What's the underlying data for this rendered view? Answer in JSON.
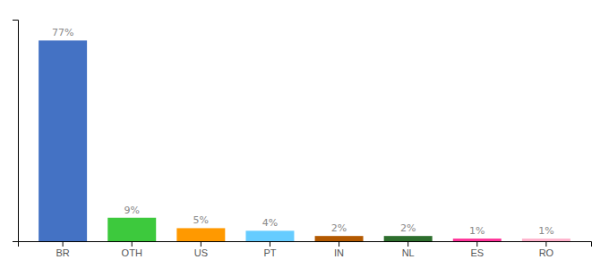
{
  "chart_data": {
    "type": "bar",
    "categories": [
      "BR",
      "OTH",
      "US",
      "PT",
      "IN",
      "NL",
      "ES",
      "RO"
    ],
    "values": [
      77,
      9,
      5,
      4,
      2,
      2,
      1,
      1
    ],
    "value_labels": [
      "77%",
      "9%",
      "5%",
      "4%",
      "2%",
      "2%",
      "1%",
      "1%"
    ],
    "colors": [
      "#4472c4",
      "#3dc93d",
      "#ff9900",
      "#66ccff",
      "#b35900",
      "#2d6e2d",
      "#ff3399",
      "#ffb3cc"
    ],
    "ylim": [
      0,
      85
    ],
    "data_labels": true,
    "tick_labels": "x",
    "grid": false
  }
}
